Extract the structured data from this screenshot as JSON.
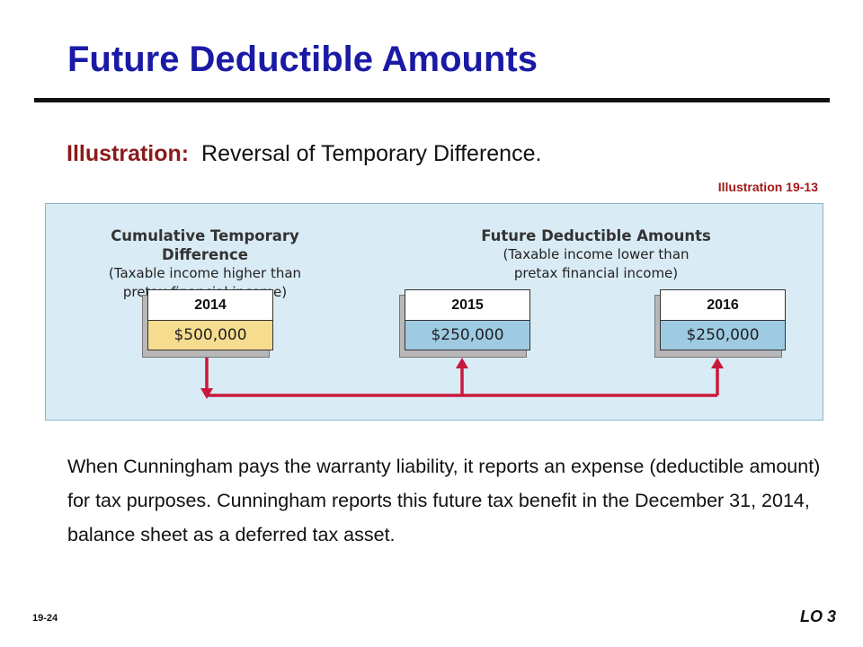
{
  "slide": {
    "title": "Future Deductible Amounts",
    "illustration_label": "Illustration:",
    "illustration_text": "Reversal of Temporary Difference.",
    "illustration_number": "Illustration 19-13",
    "body": "When Cunningham pays the warranty liability, it reports an expense (deductible amount) for tax purposes.  Cunningham reports this future tax benefit in the December 31, 2014, balance sheet as a deferred tax asset.",
    "slide_number": "19-24",
    "learning_objective": "LO 3"
  },
  "diagram": {
    "left_heading": {
      "main": "Cumulative Temporary Difference",
      "line1": "(Taxable income higher than",
      "line2": "pretax financial income)"
    },
    "right_heading": {
      "main": "Future Deductible Amounts",
      "line1": "(Taxable income lower than",
      "line2": "pretax financial income)"
    },
    "boxes": [
      {
        "year": "2014",
        "amount": "$500,000",
        "color": "#f6dc8e"
      },
      {
        "year": "2015",
        "amount": "$250,000",
        "color": "#9ecbe2"
      },
      {
        "year": "2016",
        "amount": "$250,000",
        "color": "#9ecbe2"
      }
    ],
    "arrow_color": "#c8193c"
  }
}
